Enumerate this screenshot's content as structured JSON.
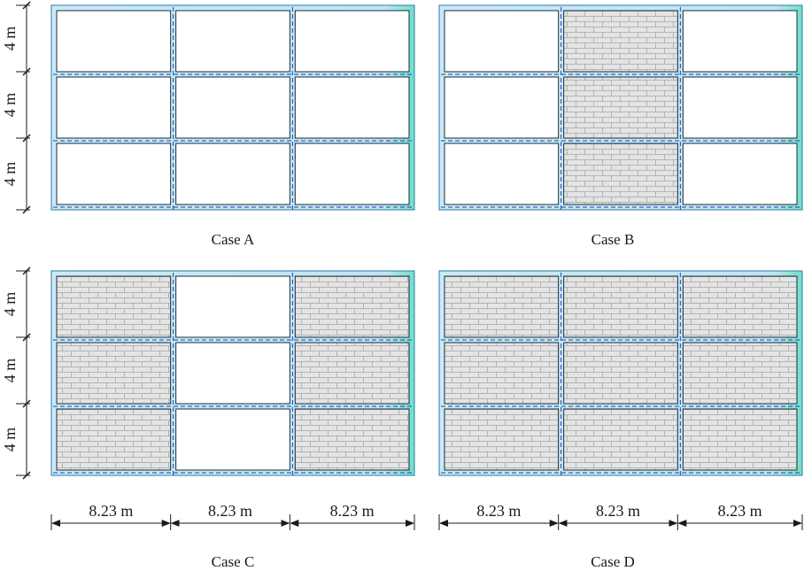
{
  "figure": {
    "cases": [
      {
        "caption": "Case A",
        "infill": [
          [
            false,
            false,
            false
          ],
          [
            false,
            false,
            false
          ],
          [
            false,
            false,
            false
          ]
        ],
        "show_height_dims": true,
        "show_width_dims": false
      },
      {
        "caption": "Case B",
        "infill": [
          [
            false,
            true,
            false
          ],
          [
            false,
            true,
            false
          ],
          [
            false,
            true,
            false
          ]
        ],
        "show_height_dims": false,
        "show_width_dims": false
      },
      {
        "caption": "Case C",
        "infill": [
          [
            true,
            false,
            true
          ],
          [
            true,
            false,
            true
          ],
          [
            true,
            false,
            true
          ]
        ],
        "show_height_dims": true,
        "show_width_dims": true
      },
      {
        "caption": "Case D",
        "infill": [
          [
            true,
            true,
            true
          ],
          [
            true,
            true,
            true
          ],
          [
            true,
            true,
            true
          ]
        ],
        "show_height_dims": false,
        "show_width_dims": true
      }
    ],
    "story_height_label": "4 m",
    "bay_width_label": "8.23 m",
    "colors": {
      "frame_fill": "#bfe6f2",
      "frame_fill_right": "#6fe0c8",
      "frame_edge": "#2c78a8",
      "frame_centerline": "#1e3fa8",
      "brick_fill": "#e4e4e4",
      "brick_line": "#a6a6a6",
      "dimension_line": "#1a1a1a"
    }
  }
}
